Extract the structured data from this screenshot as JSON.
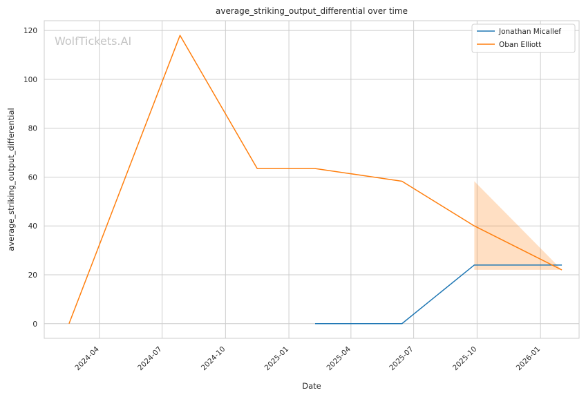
{
  "chart_data": {
    "type": "line",
    "title": "average_striking_output_differential over time",
    "xlabel": "Date",
    "ylabel": "average_striking_output_differential",
    "watermark": "WolfTickets.AI",
    "xlim": [
      "2024-01-12",
      "2026-02-26"
    ],
    "ylim": [
      -6,
      124
    ],
    "x_ticks": [
      "2024-04",
      "2024-07",
      "2024-10",
      "2025-01",
      "2025-04",
      "2025-07",
      "2025-10",
      "2026-01"
    ],
    "y_ticks": [
      0,
      20,
      40,
      60,
      80,
      100,
      120
    ],
    "grid": true,
    "legend_position": "top-right",
    "series": [
      {
        "name": "Jonathan Micallef",
        "color": "#1f77b4",
        "points": [
          {
            "x": "2025-02-08",
            "y": 0
          },
          {
            "x": "2025-06-14",
            "y": 0
          },
          {
            "x": "2025-09-27",
            "y": 24
          },
          {
            "x": "2026-02-01",
            "y": 24
          }
        ]
      },
      {
        "name": "Oban Elliott",
        "color": "#ff7f0e",
        "points": [
          {
            "x": "2024-02-17",
            "y": 0
          },
          {
            "x": "2024-07-27",
            "y": 118
          },
          {
            "x": "2024-11-16",
            "y": 63.5
          },
          {
            "x": "2025-02-08",
            "y": 63.5
          },
          {
            "x": "2025-06-14",
            "y": 58.3
          },
          {
            "x": "2025-09-27",
            "y": 40
          },
          {
            "x": "2026-02-01",
            "y": 22
          }
        ],
        "confidence_band": [
          {
            "x": "2025-09-27",
            "low": 22,
            "high": 58.3
          },
          {
            "x": "2026-02-01",
            "low": 22,
            "high": 22
          }
        ]
      }
    ]
  }
}
